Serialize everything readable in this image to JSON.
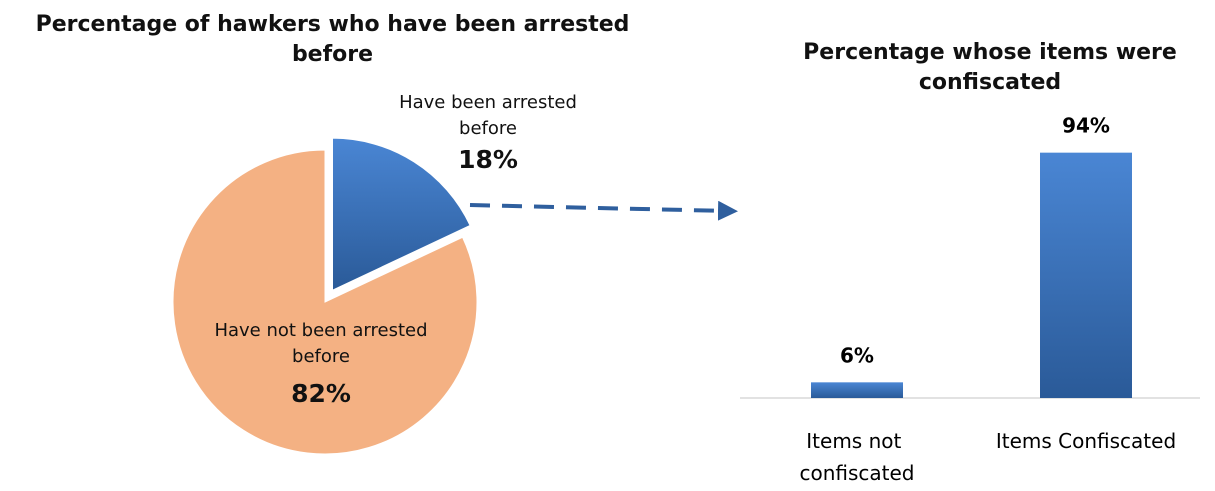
{
  "chart_data": [
    {
      "type": "pie",
      "title": "Percentage of hawkers who have been arrested before",
      "slices": [
        {
          "label": "Have been arrested before",
          "value": 18,
          "value_label": "18%",
          "color": "#3a72bb",
          "exploded": true
        },
        {
          "label": "Have not been arrested before",
          "value": 82,
          "value_label": "82%",
          "color": "#f4b183",
          "exploded": false
        }
      ]
    },
    {
      "type": "bar",
      "title": "Percentage whose items were confiscated",
      "categories": [
        "Items not confiscated",
        "Items Confiscated"
      ],
      "values": [
        6,
        94
      ],
      "value_labels": [
        "6%",
        "94%"
      ],
      "ylim": [
        0,
        100
      ],
      "color": "#3a72bb",
      "grid": false
    }
  ],
  "connector": {
    "color": "#2f5f9e",
    "style": "dashed-arrow"
  }
}
